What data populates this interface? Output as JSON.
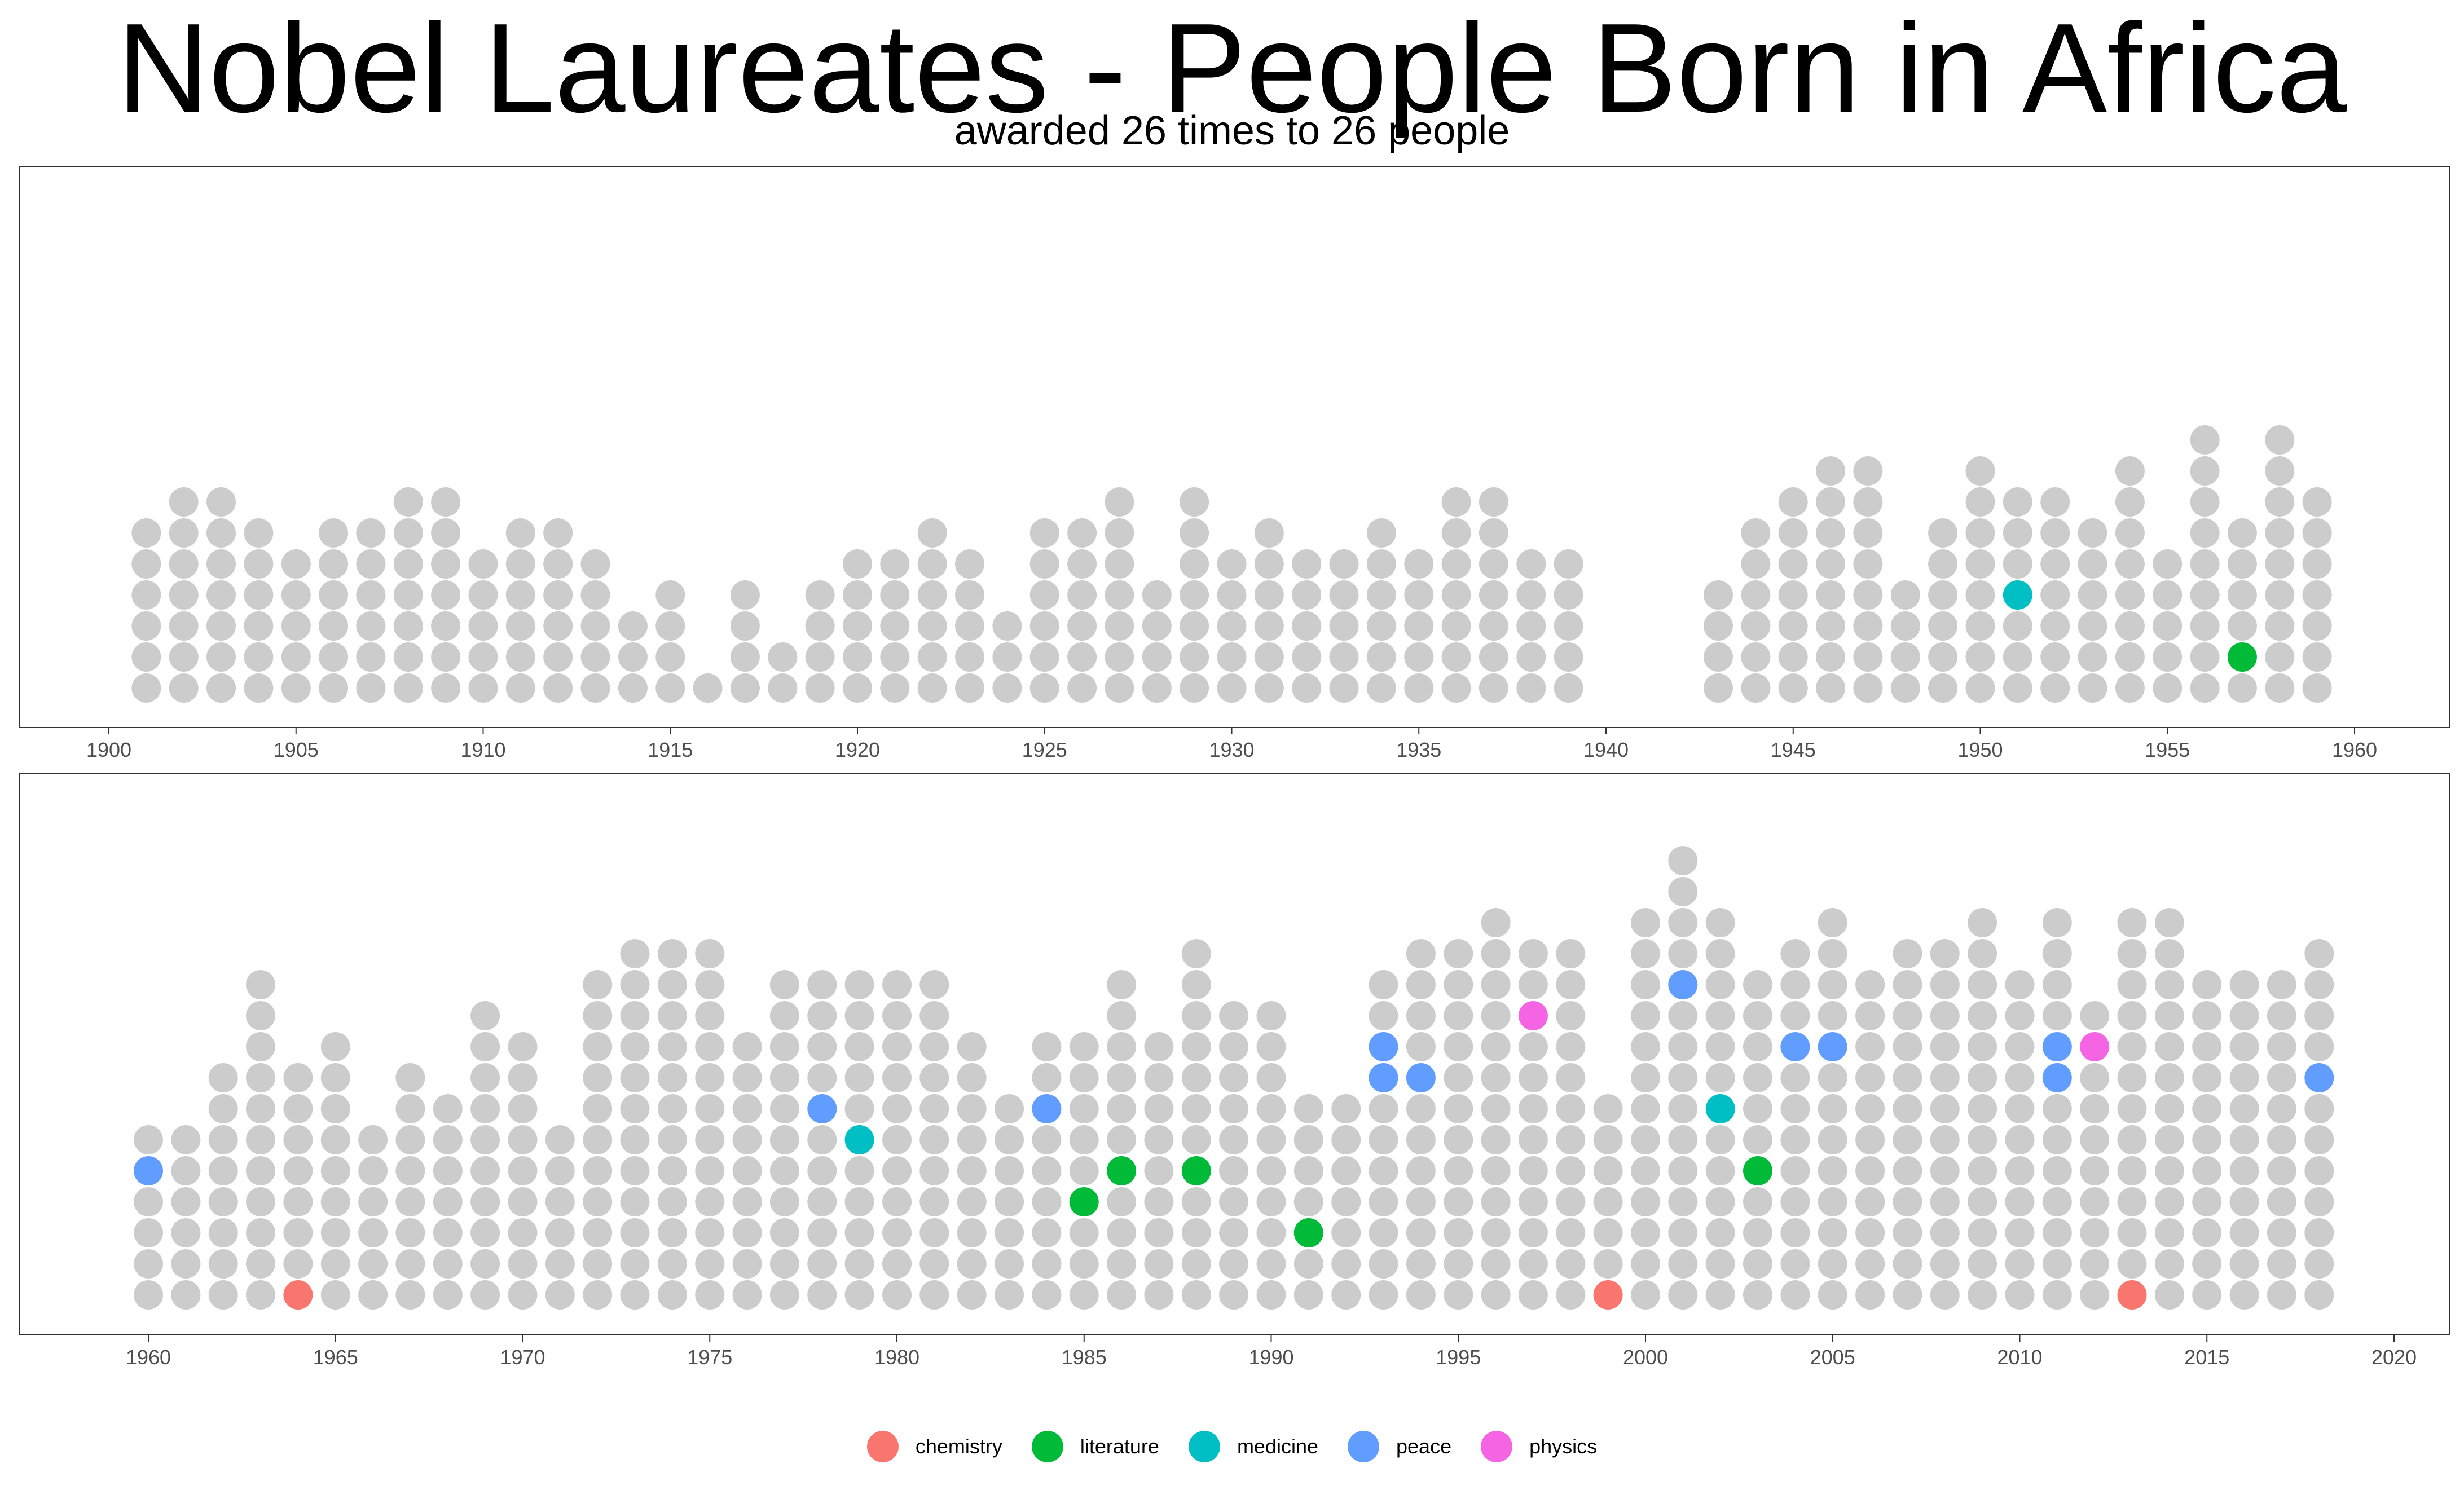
{
  "title": "Nobel Laureates - People Born in Africa",
  "subtitle": "awarded 26 times to 26 people",
  "colors": {
    "background_dot": "#cccccc",
    "chemistry": "#F8766D",
    "literature": "#00BA38",
    "medicine": "#00BFC4",
    "peace": "#619CFF",
    "physics": "#F564E3"
  },
  "legend": [
    {
      "category": "chemistry",
      "label": "chemistry"
    },
    {
      "category": "literature",
      "label": "literature"
    },
    {
      "category": "medicine",
      "label": "medicine"
    },
    {
      "category": "peace",
      "label": "peace"
    },
    {
      "category": "physics",
      "label": "physics"
    }
  ],
  "chart_data": [
    {
      "type": "scatter",
      "description_key": "panel-1900-1960",
      "xlim": [
        1900,
        1960
      ],
      "x_ticks": [
        1900,
        1905,
        1910,
        1915,
        1920,
        1925,
        1930,
        1935,
        1940,
        1945,
        1950,
        1955,
        1960
      ],
      "total_laureates_per_year": {
        "1901": 6,
        "1902": 7,
        "1903": 7,
        "1904": 6,
        "1905": 5,
        "1906": 6,
        "1907": 6,
        "1908": 7,
        "1909": 7,
        "1910": 5,
        "1911": 6,
        "1912": 6,
        "1913": 5,
        "1914": 3,
        "1915": 4,
        "1916": 1,
        "1917": 4,
        "1918": 2,
        "1919": 4,
        "1920": 5,
        "1921": 5,
        "1922": 6,
        "1923": 5,
        "1924": 3,
        "1925": 6,
        "1926": 6,
        "1927": 7,
        "1928": 4,
        "1929": 7,
        "1930": 5,
        "1931": 6,
        "1932": 5,
        "1933": 5,
        "1934": 6,
        "1935": 5,
        "1936": 7,
        "1937": 7,
        "1938": 5,
        "1939": 5,
        "1943": 4,
        "1944": 6,
        "1945": 7,
        "1946": 8,
        "1947": 8,
        "1948": 4,
        "1949": 6,
        "1950": 8,
        "1951": 7,
        "1952": 7,
        "1953": 6,
        "1954": 8,
        "1955": 5,
        "1956": 9,
        "1957": 6,
        "1958": 9,
        "1959": 7
      },
      "africa_laureates": [
        {
          "year": 1951,
          "category": "medicine",
          "stack_position": 4
        },
        {
          "year": 1957,
          "category": "literature",
          "stack_position": 2
        }
      ]
    },
    {
      "type": "scatter",
      "description_key": "panel-1960-2020",
      "xlim": [
        1960,
        2020
      ],
      "x_ticks": [
        1960,
        1965,
        1970,
        1975,
        1980,
        1985,
        1990,
        1995,
        2000,
        2005,
        2010,
        2015,
        2020
      ],
      "total_laureates_per_year": {
        "1960": 6,
        "1961": 6,
        "1962": 8,
        "1963": 11,
        "1964": 8,
        "1965": 9,
        "1966": 6,
        "1967": 8,
        "1968": 7,
        "1969": 10,
        "1970": 9,
        "1971": 6,
        "1972": 11,
        "1973": 12,
        "1974": 12,
        "1975": 12,
        "1976": 9,
        "1977": 11,
        "1978": 11,
        "1979": 11,
        "1980": 11,
        "1981": 11,
        "1982": 9,
        "1983": 7,
        "1984": 9,
        "1985": 9,
        "1986": 11,
        "1987": 9,
        "1988": 12,
        "1989": 10,
        "1990": 10,
        "1991": 7,
        "1992": 7,
        "1993": 11,
        "1994": 12,
        "1995": 12,
        "1996": 13,
        "1997": 12,
        "1998": 12,
        "1999": 7,
        "2000": 13,
        "2001": 15,
        "2002": 13,
        "2003": 11,
        "2004": 12,
        "2005": 13,
        "2006": 11,
        "2007": 12,
        "2008": 12,
        "2009": 13,
        "2010": 11,
        "2011": 13,
        "2012": 10,
        "2013": 13,
        "2014": 13,
        "2015": 11,
        "2016": 11,
        "2017": 11,
        "2018": 12
      },
      "africa_laureates": [
        {
          "year": 1960,
          "category": "peace",
          "stack_position": 5
        },
        {
          "year": 1964,
          "category": "chemistry",
          "stack_position": 1
        },
        {
          "year": 1978,
          "category": "peace",
          "stack_position": 7
        },
        {
          "year": 1979,
          "category": "medicine",
          "stack_position": 6
        },
        {
          "year": 1984,
          "category": "peace",
          "stack_position": 7
        },
        {
          "year": 1985,
          "category": "literature",
          "stack_position": 4
        },
        {
          "year": 1986,
          "category": "literature",
          "stack_position": 5
        },
        {
          "year": 1988,
          "category": "literature",
          "stack_position": 5
        },
        {
          "year": 1991,
          "category": "literature",
          "stack_position": 3
        },
        {
          "year": 1993,
          "category": "peace",
          "stack_position": 8
        },
        {
          "year": 1993,
          "category": "peace",
          "stack_position": 9
        },
        {
          "year": 1994,
          "category": "peace",
          "stack_position": 8
        },
        {
          "year": 1997,
          "category": "physics",
          "stack_position": 10
        },
        {
          "year": 1999,
          "category": "chemistry",
          "stack_position": 1
        },
        {
          "year": 2001,
          "category": "peace",
          "stack_position": 11
        },
        {
          "year": 2002,
          "category": "medicine",
          "stack_position": 7
        },
        {
          "year": 2003,
          "category": "literature",
          "stack_position": 5
        },
        {
          "year": 2004,
          "category": "peace",
          "stack_position": 9
        },
        {
          "year": 2005,
          "category": "peace",
          "stack_position": 9
        },
        {
          "year": 2011,
          "category": "peace",
          "stack_position": 8
        },
        {
          "year": 2011,
          "category": "peace",
          "stack_position": 9
        },
        {
          "year": 2012,
          "category": "physics",
          "stack_position": 9
        },
        {
          "year": 2013,
          "category": "chemistry",
          "stack_position": 1
        },
        {
          "year": 2018,
          "category": "peace",
          "stack_position": 8
        }
      ]
    }
  ]
}
